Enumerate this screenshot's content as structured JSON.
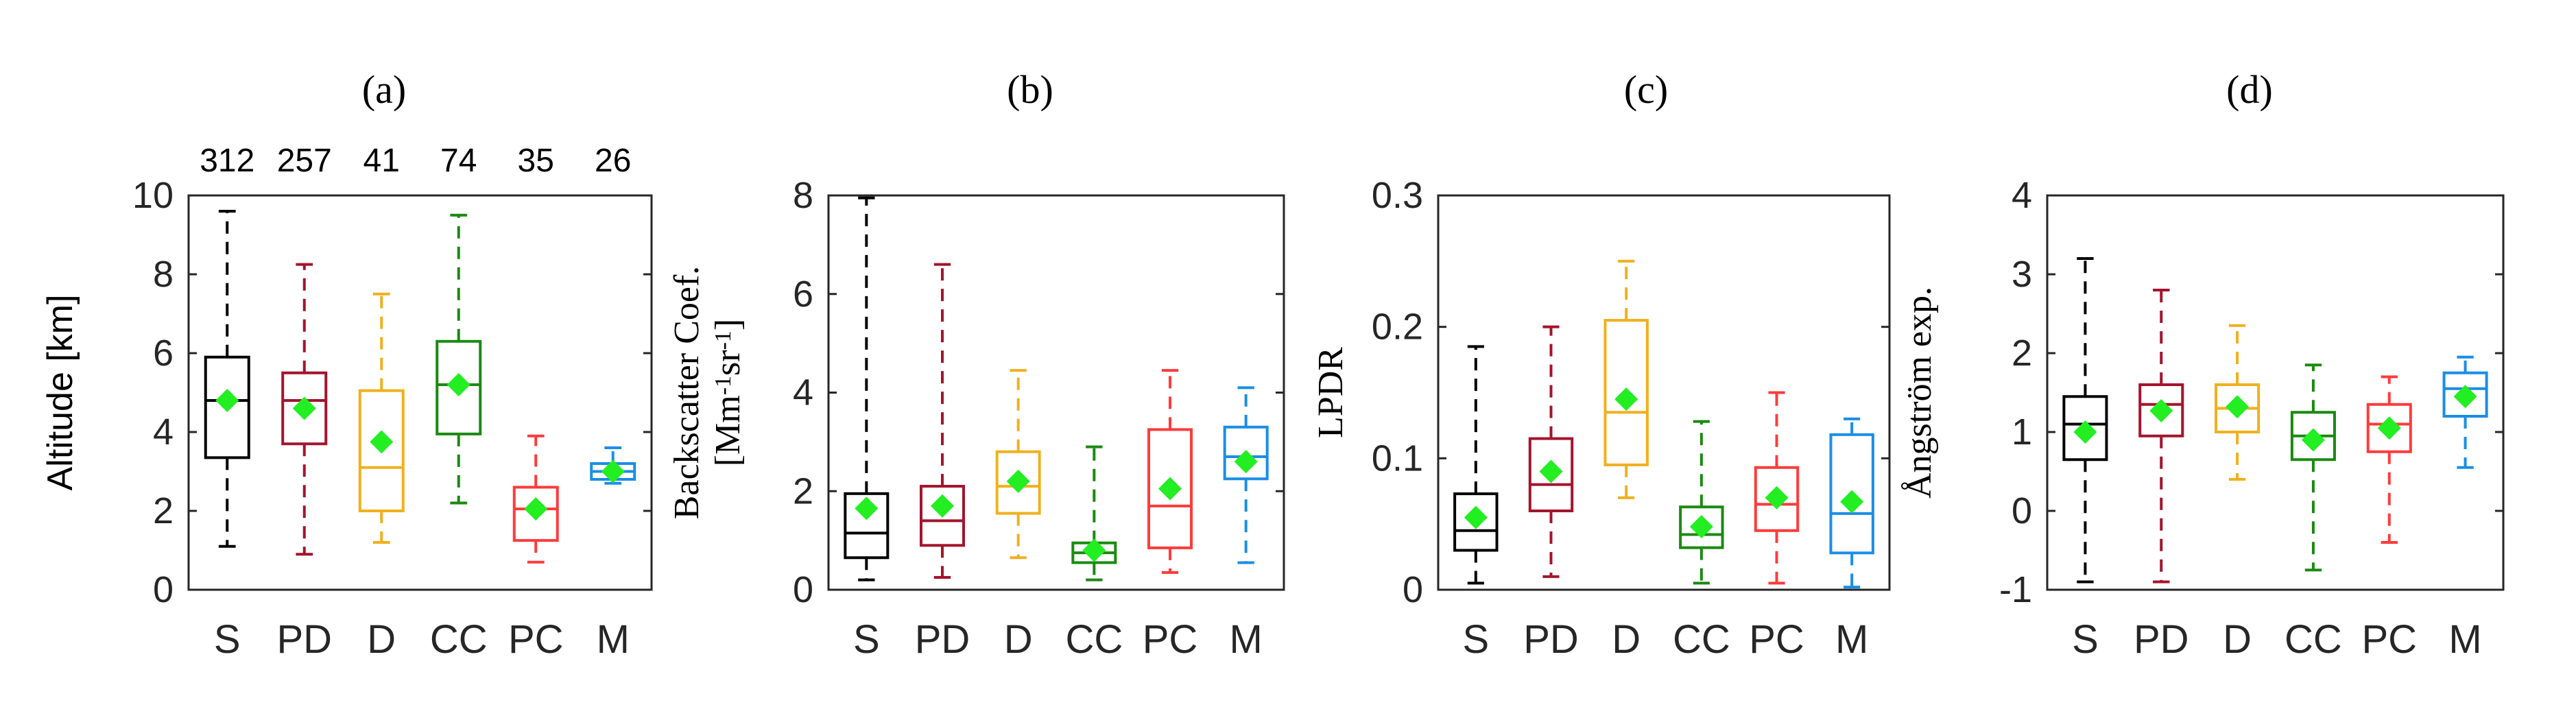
{
  "chart_data": [
    {
      "panel": "(a)",
      "type": "box",
      "title": "(a)",
      "ylabel_lines": [
        "Altitude [km]"
      ],
      "ylim": [
        0,
        10
      ],
      "yticks": [
        0,
        2,
        4,
        6,
        8,
        10
      ],
      "categories": [
        "S",
        "PD",
        "D",
        "CC",
        "PC",
        "M"
      ],
      "counts": [
        "312",
        "257",
        "41",
        "74",
        "35",
        "26"
      ],
      "boxes": [
        {
          "min": 1.1,
          "q1": 3.35,
          "median": 4.8,
          "q3": 5.9,
          "max": 9.6,
          "mean": 4.8
        },
        {
          "min": 0.9,
          "q1": 3.7,
          "median": 4.8,
          "q3": 5.5,
          "max": 8.25,
          "mean": 4.6
        },
        {
          "min": 1.2,
          "q1": 2.0,
          "median": 3.1,
          "q3": 5.05,
          "max": 7.5,
          "mean": 3.75
        },
        {
          "min": 2.2,
          "q1": 3.95,
          "median": 5.2,
          "q3": 6.3,
          "max": 9.5,
          "mean": 5.2
        },
        {
          "min": 0.7,
          "q1": 1.25,
          "median": 2.05,
          "q3": 2.6,
          "max": 3.9,
          "mean": 2.05
        },
        {
          "min": 2.7,
          "q1": 2.8,
          "median": 3.0,
          "q3": 3.2,
          "max": 3.6,
          "mean": 3.0
        }
      ]
    },
    {
      "panel": "(b)",
      "type": "box",
      "title": "(b)",
      "ylabel_lines": [
        "Backscatter Coef.",
        "[Mm",
        "-1",
        "sr",
        "-1",
        "]"
      ],
      "ylim": [
        0,
        8
      ],
      "yticks": [
        0,
        2,
        4,
        6,
        8
      ],
      "categories": [
        "S",
        "PD",
        "D",
        "CC",
        "PC",
        "M"
      ],
      "counts": [],
      "boxes": [
        {
          "min": 0.2,
          "q1": 0.65,
          "median": 1.15,
          "q3": 1.95,
          "max": 7.95,
          "mean": 1.65
        },
        {
          "min": 0.25,
          "q1": 0.9,
          "median": 1.4,
          "q3": 2.1,
          "max": 6.6,
          "mean": 1.7
        },
        {
          "min": 0.65,
          "q1": 1.55,
          "median": 2.1,
          "q3": 2.8,
          "max": 4.45,
          "mean": 2.2
        },
        {
          "min": 0.2,
          "q1": 0.55,
          "median": 0.75,
          "q3": 0.95,
          "max": 2.9,
          "mean": 0.8
        },
        {
          "min": 0.35,
          "q1": 0.85,
          "median": 1.7,
          "q3": 3.25,
          "max": 4.45,
          "mean": 2.05
        },
        {
          "min": 0.55,
          "q1": 2.25,
          "median": 2.7,
          "q3": 3.3,
          "max": 4.1,
          "mean": 2.6
        }
      ]
    },
    {
      "panel": "(c)",
      "type": "box",
      "title": "(c)",
      "ylabel_lines": [
        "LPDR"
      ],
      "ylim": [
        0,
        0.3
      ],
      "yticks": [
        0,
        0.1,
        0.2,
        0.3
      ],
      "ytick_labels": [
        "0",
        "0.1",
        "0.2",
        "0.3"
      ],
      "categories": [
        "S",
        "PD",
        "D",
        "CC",
        "PC",
        "M"
      ],
      "counts": [],
      "boxes": [
        {
          "min": 0.005,
          "q1": 0.03,
          "median": 0.045,
          "q3": 0.073,
          "max": 0.185,
          "mean": 0.055
        },
        {
          "min": 0.01,
          "q1": 0.06,
          "median": 0.08,
          "q3": 0.115,
          "max": 0.2,
          "mean": 0.09
        },
        {
          "min": 0.07,
          "q1": 0.095,
          "median": 0.135,
          "q3": 0.205,
          "max": 0.25,
          "mean": 0.145
        },
        {
          "min": 0.005,
          "q1": 0.032,
          "median": 0.042,
          "q3": 0.063,
          "max": 0.128,
          "mean": 0.048
        },
        {
          "min": 0.005,
          "q1": 0.045,
          "median": 0.065,
          "q3": 0.093,
          "max": 0.15,
          "mean": 0.07
        },
        {
          "min": 0.002,
          "q1": 0.028,
          "median": 0.058,
          "q3": 0.118,
          "max": 0.13,
          "mean": 0.067
        }
      ]
    },
    {
      "panel": "(d)",
      "type": "box",
      "title": "(d)",
      "ylabel_lines": [
        "Ångström exp."
      ],
      "ylim": [
        -1,
        4
      ],
      "yticks": [
        -1,
        0,
        1,
        2,
        3,
        4
      ],
      "categories": [
        "S",
        "PD",
        "D",
        "CC",
        "PC",
        "M"
      ],
      "counts": [],
      "boxes": [
        {
          "min": -0.9,
          "q1": 0.65,
          "median": 1.1,
          "q3": 1.45,
          "max": 3.2,
          "mean": 1.0
        },
        {
          "min": -0.9,
          "q1": 0.95,
          "median": 1.35,
          "q3": 1.6,
          "max": 2.8,
          "mean": 1.27
        },
        {
          "min": 0.4,
          "q1": 1.0,
          "median": 1.3,
          "q3": 1.6,
          "max": 2.35,
          "mean": 1.32
        },
        {
          "min": -0.75,
          "q1": 0.65,
          "median": 0.95,
          "q3": 1.25,
          "max": 1.85,
          "mean": 0.9
        },
        {
          "min": -0.4,
          "q1": 0.75,
          "median": 1.1,
          "q3": 1.35,
          "max": 1.7,
          "mean": 1.05
        },
        {
          "min": 0.55,
          "q1": 1.2,
          "median": 1.55,
          "q3": 1.75,
          "max": 1.95,
          "mean": 1.45
        }
      ]
    }
  ],
  "colors": {
    "categories": [
      "#000000",
      "#a3142d",
      "#f0b01e",
      "#1a8a10",
      "#ff3b3b",
      "#1a8ee6"
    ],
    "mean_marker": "#22ee22",
    "axis": "#262626"
  }
}
